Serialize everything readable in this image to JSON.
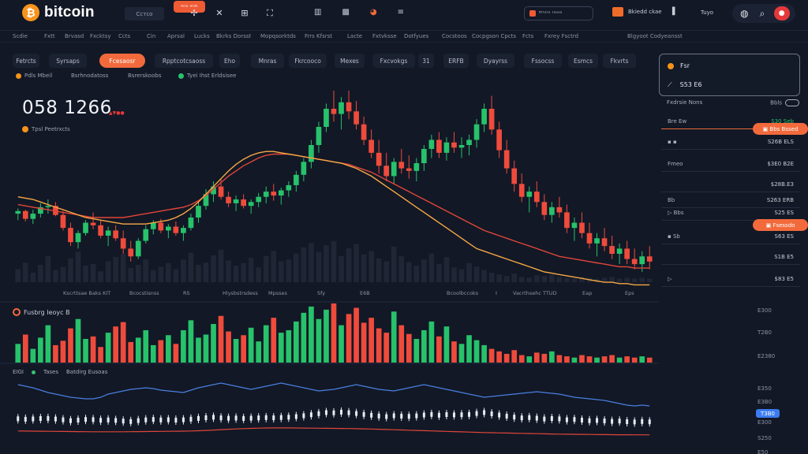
{
  "header": {
    "brand": "bitcoin",
    "symbol_pill": "Сcтco",
    "orange_badge": "ᴬᶦᶦᵃ ᵃᵗᵃᵏ",
    "wallet_label": "ᴮᶦᵗᵃᵗᵃ ᶦᵃᵃᵃᵃ",
    "account_label": "Bkiedd ckae",
    "account2": "▌",
    "account3": "Tuyo"
  },
  "menu": [
    "Scdie",
    "Fxtt",
    "Brvasd",
    "Fxcktsy",
    "Ccts",
    "Cin",
    "Aprsal",
    "Lucks",
    "Bkrks Dorsst",
    "Mopqsorktds",
    "Frrs Kfsrst",
    "Lacte",
    "Fxtvksse",
    "Dotfyues",
    "Cocstoos",
    "Cocpgson Cpcts",
    "Fcts",
    "Fxrey Fsctrd",
    "Blgyoot Codyeansst"
  ],
  "tabs": [
    "Fetrcts",
    "Syrsaps",
    "Fcesaosr",
    "Rpptcotcsaoss",
    "Eho",
    "Mnras",
    "Fkrcooco",
    "Mexes",
    "Fxcvokgs",
    "31",
    "ERFB",
    "Dyayrss",
    "Fssocss",
    "Esmcs",
    "Fkvrts"
  ],
  "active_tab_index": 2,
  "sublines": [
    "Pdls Mbeil",
    "Bsrhnodatoss",
    "Bsrerskoobs",
    "Tyei Ihst Erldsisee"
  ],
  "price": "058 1266",
  "price_change": "▲▼●●",
  "pair": "Tpsl Peetrxcts",
  "panel": {
    "row1": "Fsr",
    "row2": "S53 E6"
  },
  "orderbook": {
    "header_left": "Fxdrsie Nons",
    "header_right": "Bbls",
    "rows": [
      {
        "l": "Bre Ew",
        "r": "S30 Seb"
      },
      {
        "l": "▪ ▪",
        "r": "S26B ELS"
      },
      {
        "l": "Fmeo",
        "r": "$3E0 B2E"
      },
      {
        "l": "",
        "r": "$28B.E3"
      },
      {
        "l": "Bb",
        "r": "S263 ERB"
      },
      {
        "l": "▷ Bbs",
        "r": "S25 ES"
      },
      {
        "l": "▪ Sb",
        "r": "S63 ES"
      },
      {
        "l": "",
        "r": "S1B E5"
      },
      {
        "l": "▷",
        "r": "$83 E5"
      }
    ],
    "btn1": "▣ Bbs Bssed",
    "btn2": "▣ Fsessdo",
    "last": "S1B 35"
  },
  "bottom_labels": [
    "Kscrttsae Baks KIT",
    "Bcocstisnss",
    "RS",
    "Hlysbstrsdess",
    "Mpsses",
    "Sfy",
    "E6B",
    "Bcoolbccoks",
    "I",
    "Vacrthsehc TTUD",
    "Eap",
    "Eps"
  ],
  "volume_label": "Fusbrg Ieoyc B",
  "indicator_labels": [
    "EIGI",
    "Tases",
    "Batdirg Eusoas"
  ],
  "right_axis": [
    "E300",
    "T2B0",
    "E2380",
    "E350",
    "E3B0",
    "S250",
    "E50",
    "E3B0",
    "E300"
  ],
  "rsi_tag": "T3B0",
  "colors": {
    "up": "#27c26b",
    "down": "#ef4b3c",
    "ma_fast": "#f7a844",
    "ma_slow": "#e0463a",
    "rsi": "#4a7fe0",
    "accent": "#f26a3c"
  },
  "chart_data": {
    "type": "candlestick",
    "candles": [
      [
        205,
        209,
        200,
        207
      ],
      [
        207,
        208,
        199,
        201
      ],
      [
        201,
        208,
        197,
        205
      ],
      [
        205,
        213,
        202,
        210
      ],
      [
        210,
        216,
        205,
        211
      ],
      [
        211,
        214,
        203,
        204
      ],
      [
        204,
        207,
        192,
        194
      ],
      [
        194,
        198,
        180,
        183
      ],
      [
        183,
        192,
        178,
        190
      ],
      [
        190,
        200,
        188,
        198
      ],
      [
        198,
        206,
        193,
        196
      ],
      [
        196,
        200,
        186,
        188
      ],
      [
        188,
        195,
        180,
        192
      ],
      [
        192,
        196,
        184,
        186
      ],
      [
        186,
        192,
        174,
        178
      ],
      [
        178,
        184,
        168,
        172
      ],
      [
        172,
        186,
        170,
        184
      ],
      [
        184,
        196,
        182,
        193
      ],
      [
        193,
        200,
        189,
        198
      ],
      [
        198,
        201,
        190,
        192
      ],
      [
        192,
        197,
        186,
        195
      ],
      [
        195,
        199,
        188,
        190
      ],
      [
        190,
        196,
        184,
        194
      ],
      [
        194,
        205,
        192,
        202
      ],
      [
        202,
        214,
        198,
        211
      ],
      [
        211,
        224,
        208,
        220
      ],
      [
        220,
        230,
        214,
        226
      ],
      [
        226,
        232,
        216,
        218
      ],
      [
        218,
        222,
        210,
        213
      ],
      [
        213,
        219,
        207,
        216
      ],
      [
        216,
        220,
        209,
        211
      ],
      [
        211,
        216,
        205,
        214
      ],
      [
        214,
        221,
        210,
        218
      ],
      [
        218,
        226,
        213,
        222
      ],
      [
        222,
        228,
        215,
        219
      ],
      [
        219,
        225,
        212,
        223
      ],
      [
        223,
        230,
        218,
        227
      ],
      [
        227,
        238,
        222,
        235
      ],
      [
        235,
        248,
        230,
        245
      ],
      [
        245,
        262,
        240,
        258
      ],
      [
        258,
        276,
        252,
        272
      ],
      [
        272,
        290,
        268,
        286
      ],
      [
        286,
        300,
        276,
        282
      ],
      [
        282,
        295,
        270,
        291
      ],
      [
        291,
        300,
        278,
        284
      ],
      [
        284,
        292,
        270,
        274
      ],
      [
        274,
        280,
        258,
        262
      ],
      [
        262,
        270,
        248,
        252
      ],
      [
        252,
        262,
        236,
        242
      ],
      [
        242,
        252,
        230,
        234
      ],
      [
        234,
        248,
        228,
        245
      ],
      [
        245,
        255,
        236,
        240
      ],
      [
        240,
        250,
        232,
        238
      ],
      [
        238,
        248,
        230,
        244
      ],
      [
        244,
        258,
        238,
        255
      ],
      [
        255,
        266,
        248,
        262
      ],
      [
        262,
        268,
        248,
        252
      ],
      [
        252,
        264,
        246,
        260
      ],
      [
        260,
        268,
        252,
        256
      ],
      [
        256,
        264,
        248,
        258
      ],
      [
        258,
        266,
        250,
        262
      ],
      [
        262,
        278,
        256,
        274
      ],
      [
        274,
        290,
        268,
        286
      ],
      [
        286,
        296,
        266,
        270
      ],
      [
        270,
        276,
        248,
        254
      ],
      [
        254,
        262,
        236,
        240
      ],
      [
        240,
        246,
        222,
        228
      ],
      [
        228,
        236,
        214,
        218
      ],
      [
        218,
        226,
        206,
        222
      ],
      [
        222,
        230,
        210,
        214
      ],
      [
        214,
        220,
        200,
        204
      ],
      [
        204,
        214,
        198,
        210
      ],
      [
        210,
        218,
        202,
        206
      ],
      [
        206,
        212,
        190,
        194
      ],
      [
        194,
        202,
        184,
        198
      ],
      [
        198,
        206,
        186,
        190
      ],
      [
        190,
        198,
        178,
        182
      ],
      [
        182,
        190,
        172,
        186
      ],
      [
        186,
        194,
        176,
        180
      ],
      [
        180,
        188,
        170,
        174
      ],
      [
        174,
        182,
        166,
        178
      ],
      [
        178,
        184,
        166,
        170
      ],
      [
        170,
        178,
        162,
        166
      ],
      [
        166,
        176,
        160,
        172
      ],
      [
        172,
        180,
        162,
        168
      ]
    ],
    "ma_fast": [
      218,
      217,
      216,
      214,
      212,
      210,
      208,
      206,
      204,
      202,
      201,
      200,
      199,
      198,
      197,
      197,
      197,
      197,
      198,
      199,
      200,
      202,
      205,
      209,
      214,
      220,
      226,
      232,
      238,
      243,
      247,
      250,
      252,
      253,
      253,
      252,
      251,
      250,
      249,
      248,
      247,
      246,
      245,
      244,
      242,
      240,
      237,
      234,
      230,
      226,
      222,
      218,
      214,
      210,
      206,
      202,
      198,
      194,
      190,
      186,
      182,
      178,
      176,
      174,
      172,
      170,
      168,
      166,
      164,
      162,
      160,
      159,
      158,
      157,
      156,
      155,
      154,
      153,
      152,
      152,
      151,
      151,
      150,
      150,
      150
    ],
    "ma_slow": [
      212,
      211,
      210,
      209,
      208,
      207,
      206,
      205,
      204,
      203,
      202,
      202,
      202,
      202,
      202,
      203,
      204,
      205,
      206,
      207,
      208,
      209,
      210,
      212,
      215,
      219,
      224,
      229,
      234,
      238,
      242,
      245,
      248,
      250,
      251,
      251,
      251,
      250,
      249,
      248,
      247,
      246,
      245,
      244,
      243,
      241,
      239,
      237,
      234,
      231,
      228,
      225,
      222,
      219,
      216,
      213,
      210,
      207,
      204,
      201,
      198,
      195,
      192,
      190,
      188,
      186,
      184,
      182,
      180,
      178,
      176,
      174,
      172,
      171,
      170,
      169,
      168,
      167,
      166,
      165,
      164,
      164,
      163,
      163,
      163
    ],
    "volume": [
      30,
      45,
      22,
      40,
      60,
      28,
      35,
      55,
      70,
      38,
      42,
      25,
      48,
      58,
      65,
      33,
      40,
      52,
      28,
      36,
      44,
      30,
      52,
      68,
      40,
      45,
      62,
      75,
      50,
      38,
      44,
      56,
      34,
      60,
      72,
      48,
      52,
      66,
      80,
      90,
      70,
      85,
      95,
      60,
      78,
      88,
      64,
      72,
      55,
      48,
      82,
      60,
      46,
      38,
      52,
      66,
      42,
      58,
      34,
      30,
      44,
      36,
      28,
      22,
      18,
      14,
      20,
      12,
      10,
      16,
      14,
      18,
      12,
      10,
      8,
      12,
      10,
      8,
      10,
      12,
      8,
      10,
      8,
      10,
      8
    ],
    "rsi": [
      62,
      60,
      58,
      55,
      52,
      50,
      48,
      46,
      45,
      44,
      44,
      46,
      50,
      52,
      54,
      56,
      57,
      58,
      57,
      55,
      54,
      53,
      52,
      55,
      58,
      60,
      62,
      64,
      62,
      60,
      58,
      56,
      58,
      60,
      62,
      64,
      62,
      60,
      58,
      56,
      54,
      55,
      56,
      58,
      60,
      62,
      60,
      58,
      56,
      55,
      54,
      56,
      58,
      60,
      62,
      60,
      58,
      56,
      54,
      52,
      50,
      48,
      46,
      47,
      48,
      49,
      50,
      51,
      52,
      53,
      52,
      51,
      50,
      48,
      46,
      45,
      44,
      43,
      42,
      40,
      38,
      36,
      35,
      36,
      35
    ]
  }
}
